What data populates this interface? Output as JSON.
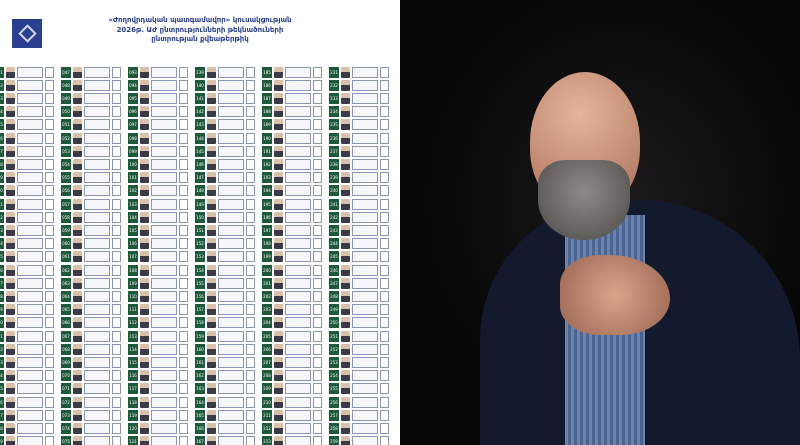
{
  "ballot": {
    "title_lines": [
      "«Ժողովրդական պատգամավոր» կուսակցության",
      "2026թ. ԱԺ ընտրությունների թեկնածուների",
      "ընտրության քվեաթերթիկ"
    ],
    "logo": "election-commission-logo",
    "colors": {
      "number_bg": "#1d5a3a",
      "logo_bg": "#2a3f8f",
      "text": "#2a3f8f"
    },
    "columns": [
      {
        "start": 1,
        "end": 29
      },
      {
        "start": 47,
        "end": 75
      },
      {
        "start": 93,
        "end": 121
      },
      {
        "start": 139,
        "end": 167
      },
      {
        "start": 185,
        "end": 213
      },
      {
        "start": 231,
        "end": 259
      }
    ]
  },
  "photo": {
    "subject": "bald bearded man in dark jacket gesturing, dark background"
  }
}
